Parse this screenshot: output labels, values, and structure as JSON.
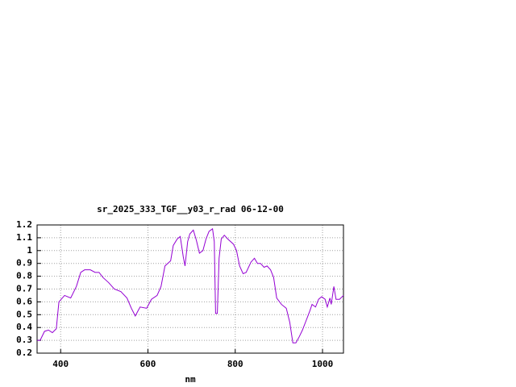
{
  "chart_data": {
    "type": "line",
    "title": "sr_2025_333_TGF__y03_r_rad 06-12-00",
    "x_label": "nm",
    "x": [
      346,
      353,
      363,
      372,
      381,
      390,
      396,
      409,
      423,
      436,
      446,
      455,
      468,
      479,
      488,
      497,
      510,
      523,
      538,
      552,
      562,
      571,
      582,
      597,
      608,
      621,
      630,
      639,
      652,
      658,
      667,
      674,
      681,
      685,
      691,
      696,
      704,
      711,
      718,
      726,
      733,
      740,
      748,
      752,
      755,
      759,
      763,
      768,
      775,
      783,
      796,
      803,
      810,
      818,
      825,
      836,
      844,
      851,
      858,
      866,
      873,
      881,
      888,
      895,
      906,
      917,
      925,
      932,
      939,
      947,
      954,
      962,
      971,
      976,
      984,
      991,
      998,
      1006,
      1011,
      1017,
      1020,
      1026,
      1031,
      1039,
      1048
    ],
    "series": [
      {
        "color": "#9400d3",
        "values": [
          0.3,
          0.3,
          0.37,
          0.38,
          0.36,
          0.39,
          0.6,
          0.65,
          0.63,
          0.72,
          0.83,
          0.85,
          0.85,
          0.83,
          0.83,
          0.79,
          0.75,
          0.7,
          0.68,
          0.63,
          0.55,
          0.49,
          0.56,
          0.55,
          0.62,
          0.65,
          0.72,
          0.88,
          0.92,
          1.04,
          1.09,
          1.11,
          0.95,
          0.88,
          1.07,
          1.13,
          1.16,
          1.08,
          0.98,
          1.0,
          1.09,
          1.15,
          1.17,
          1.07,
          0.51,
          0.51,
          0.94,
          1.09,
          1.12,
          1.09,
          1.05,
          1.0,
          0.88,
          0.82,
          0.83,
          0.91,
          0.94,
          0.9,
          0.9,
          0.87,
          0.88,
          0.85,
          0.79,
          0.63,
          0.58,
          0.55,
          0.44,
          0.28,
          0.28,
          0.33,
          0.38,
          0.45,
          0.53,
          0.58,
          0.56,
          0.62,
          0.64,
          0.62,
          0.56,
          0.63,
          0.58,
          0.72,
          0.62,
          0.62,
          0.65
        ]
      }
    ],
    "xlim": [
      346,
      1048
    ],
    "xticks": [
      400,
      600,
      800,
      1000
    ],
    "ylim": [
      0.2,
      1.2
    ],
    "yticks": [
      0.2,
      0.3,
      0.4,
      0.5,
      0.6,
      0.7,
      0.8,
      0.9,
      1,
      1.1,
      1.2
    ],
    "grid": true
  }
}
